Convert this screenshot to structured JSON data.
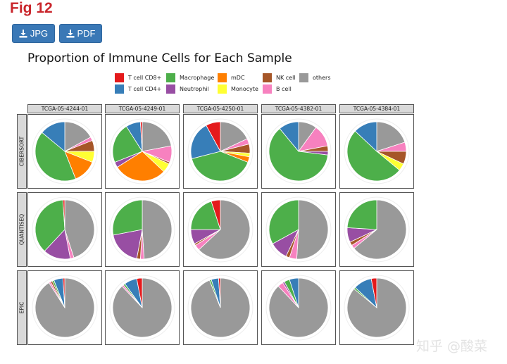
{
  "header": {
    "fig_label": "Fig 12"
  },
  "buttons": {
    "jpg": "JPG",
    "pdf": "PDF"
  },
  "watermark": "知乎 @酸菜",
  "chart_data": {
    "type": "pie",
    "title": "Proportion of Immune Cells for Each Sample",
    "legend": {
      "placement": "top",
      "items": [
        {
          "name": "T cell CD8+",
          "color": "#e41a1c"
        },
        {
          "name": "T cell CD4+",
          "color": "#377eb8"
        },
        {
          "name": "Macrophage",
          "color": "#4daf4a"
        },
        {
          "name": "Neutrophil",
          "color": "#984ea3"
        },
        {
          "name": "mDC",
          "color": "#ff7f00"
        },
        {
          "name": "Monocyte",
          "color": "#ffff33"
        },
        {
          "name": "NK cell",
          "color": "#a65628"
        },
        {
          "name": "B cell",
          "color": "#f781bf"
        },
        {
          "name": "others",
          "color": "#999999"
        }
      ]
    },
    "columns": [
      "TCGA-05-4244-01",
      "TCGA-05-4249-01",
      "TCGA-05-4250-01",
      "TCGA-05-4382-01",
      "TCGA-05-4384-01"
    ],
    "rows": [
      "CIBERSORT",
      "QUANTISEQ",
      "EPIC"
    ],
    "panels": [
      [
        {
          "T cell CD8+": 0.0,
          "T cell CD4+": 0.14,
          "Macrophage": 0.42,
          "Neutrophil": 0.0,
          "mDC": 0.13,
          "Monocyte": 0.06,
          "NK cell": 0.06,
          "B cell": 0.02,
          "others": 0.17
        },
        {
          "T cell CD8+": 0.01,
          "T cell CD4+": 0.08,
          "Macrophage": 0.22,
          "Neutrophil": 0.03,
          "mDC": 0.29,
          "Monocyte": 0.05,
          "NK cell": 0.01,
          "B cell": 0.09,
          "others": 0.22
        },
        {
          "T cell CD8+": 0.08,
          "T cell CD4+": 0.21,
          "Macrophage": 0.4,
          "Neutrophil": 0.0,
          "mDC": 0.03,
          "Monocyte": 0.02,
          "NK cell": 0.05,
          "B cell": 0.03,
          "others": 0.18
        },
        {
          "T cell CD8+": 0.0,
          "T cell CD4+": 0.11,
          "Macrophage": 0.62,
          "Neutrophil": 0.02,
          "mDC": 0.0,
          "Monocyte": 0.0,
          "NK cell": 0.03,
          "B cell": 0.12,
          "others": 0.1
        },
        {
          "T cell CD8+": 0.0,
          "T cell CD4+": 0.13,
          "Macrophage": 0.51,
          "Neutrophil": 0.0,
          "mDC": 0.0,
          "Monocyte": 0.04,
          "NK cell": 0.07,
          "B cell": 0.05,
          "others": 0.2
        }
      ],
      [
        {
          "T cell CD8+": 0.01,
          "T cell CD4+": 0.0,
          "Macrophage": 0.37,
          "Neutrophil": 0.15,
          "mDC": 0.0,
          "Monocyte": 0.0,
          "NK cell": 0.0,
          "B cell": 0.02,
          "others": 0.45
        },
        {
          "T cell CD8+": 0.0,
          "T cell CD4+": 0.0,
          "Macrophage": 0.28,
          "Neutrophil": 0.19,
          "mDC": 0.0,
          "Monocyte": 0.0,
          "NK cell": 0.02,
          "B cell": 0.02,
          "others": 0.49
        },
        {
          "T cell CD8+": 0.05,
          "T cell CD4+": 0.0,
          "Macrophage": 0.2,
          "Neutrophil": 0.08,
          "mDC": 0.0,
          "Monocyte": 0.0,
          "NK cell": 0.01,
          "B cell": 0.03,
          "others": 0.63
        },
        {
          "T cell CD8+": 0.0,
          "T cell CD4+": 0.0,
          "Macrophage": 0.33,
          "Neutrophil": 0.1,
          "mDC": 0.0,
          "Monocyte": 0.0,
          "NK cell": 0.02,
          "B cell": 0.04,
          "others": 0.51
        },
        {
          "T cell CD8+": 0.0,
          "T cell CD4+": 0.0,
          "Macrophage": 0.24,
          "Neutrophil": 0.08,
          "mDC": 0.0,
          "Monocyte": 0.0,
          "NK cell": 0.02,
          "B cell": 0.02,
          "others": 0.64
        }
      ],
      [
        {
          "T cell CD8+": 0.01,
          "T cell CD4+": 0.05,
          "Macrophage": 0.01,
          "Neutrophil": 0.0,
          "mDC": 0.0,
          "Monocyte": 0.0,
          "NK cell": 0.01,
          "B cell": 0.01,
          "others": 0.91
        },
        {
          "T cell CD8+": 0.03,
          "T cell CD4+": 0.07,
          "Macrophage": 0.01,
          "Neutrophil": 0.0,
          "mDC": 0.0,
          "Monocyte": 0.0,
          "NK cell": 0.0,
          "B cell": 0.01,
          "others": 0.88
        },
        {
          "T cell CD8+": 0.01,
          "T cell CD4+": 0.04,
          "Macrophage": 0.01,
          "Neutrophil": 0.0,
          "mDC": 0.0,
          "Monocyte": 0.0,
          "NK cell": 0.0,
          "B cell": 0.0,
          "others": 0.94
        },
        {
          "T cell CD8+": 0.0,
          "T cell CD4+": 0.05,
          "Macrophage": 0.03,
          "Neutrophil": 0.01,
          "mDC": 0.0,
          "Monocyte": 0.0,
          "NK cell": 0.0,
          "B cell": 0.03,
          "others": 0.88
        },
        {
          "T cell CD8+": 0.03,
          "T cell CD4+": 0.1,
          "Macrophage": 0.01,
          "Neutrophil": 0.0,
          "mDC": 0.0,
          "Monocyte": 0.0,
          "NK cell": 0.0,
          "B cell": 0.0,
          "others": 0.86
        }
      ]
    ]
  }
}
